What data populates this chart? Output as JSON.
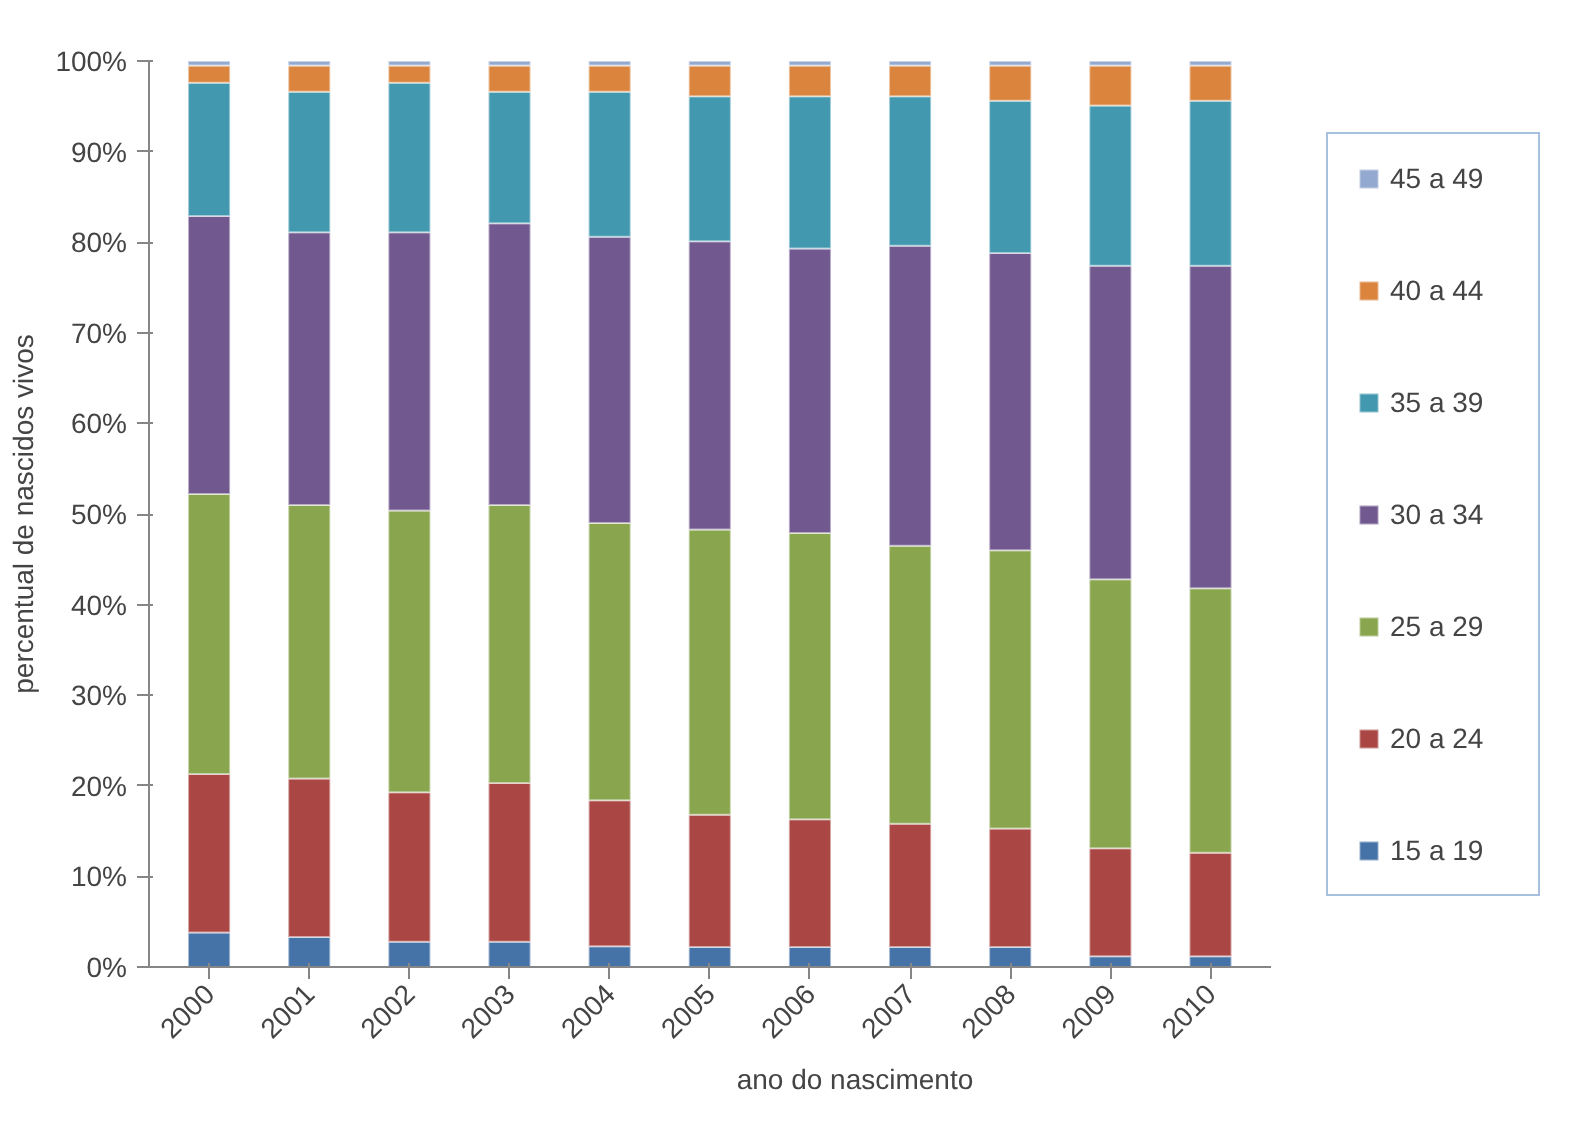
{
  "chart_data": {
    "type": "bar",
    "stacked": true,
    "xlabel": "ano do nascimento",
    "ylabel": "percentual de nascidos vivos",
    "categories": [
      "2000",
      "2001",
      "2002",
      "2003",
      "2004",
      "2005",
      "2006",
      "2007",
      "2008",
      "2009",
      "2010"
    ],
    "ylim": [
      0,
      100
    ],
    "yticks": [
      {
        "value": 0,
        "label": "0%"
      },
      {
        "value": 10,
        "label": "10%"
      },
      {
        "value": 20,
        "label": "20%"
      },
      {
        "value": 30,
        "label": "30%"
      },
      {
        "value": 40,
        "label": "40%"
      },
      {
        "value": 50,
        "label": "50%"
      },
      {
        "value": 60,
        "label": "60%"
      },
      {
        "value": 70,
        "label": "70%"
      },
      {
        "value": 80,
        "label": "80%"
      },
      {
        "value": 90,
        "label": "90%"
      },
      {
        "value": 100,
        "label": "100%"
      }
    ],
    "grid": false,
    "legend": "right",
    "series": [
      {
        "name": "15 a 19",
        "color": "#4572a7",
        "values": [
          3.8,
          3.3,
          2.8,
          2.8,
          2.3,
          2.2,
          2.2,
          2.2,
          2.2,
          1.2,
          1.2
        ]
      },
      {
        "name": "20 a 24",
        "color": "#aa4643",
        "values": [
          17.5,
          17.5,
          16.5,
          17.5,
          16.1,
          14.6,
          14.1,
          13.6,
          13.1,
          11.9,
          11.4
        ]
      },
      {
        "name": "25 a 29",
        "color": "#89a54e",
        "values": [
          30.9,
          30.2,
          31.1,
          30.7,
          30.6,
          31.5,
          31.6,
          30.7,
          30.7,
          29.7,
          29.2
        ]
      },
      {
        "name": "30 a 34",
        "color": "#71588f",
        "values": [
          30.7,
          30.1,
          30.7,
          31.1,
          31.6,
          31.8,
          31.4,
          33.1,
          32.8,
          34.6,
          35.6
        ]
      },
      {
        "name": "35 a 39",
        "color": "#4198af",
        "values": [
          14.7,
          15.5,
          16.5,
          14.5,
          16.0,
          16.0,
          16.8,
          16.5,
          16.8,
          17.7,
          18.2
        ]
      },
      {
        "name": "40 a 44",
        "color": "#db843d",
        "values": [
          1.9,
          2.9,
          1.9,
          2.9,
          2.9,
          3.4,
          3.4,
          3.4,
          3.9,
          4.4,
          3.9
        ]
      },
      {
        "name": "45 a 49",
        "color": "#93a9cf",
        "values": [
          0.5,
          0.5,
          0.5,
          0.5,
          0.5,
          0.5,
          0.5,
          0.5,
          0.5,
          0.5,
          0.5
        ]
      }
    ]
  }
}
